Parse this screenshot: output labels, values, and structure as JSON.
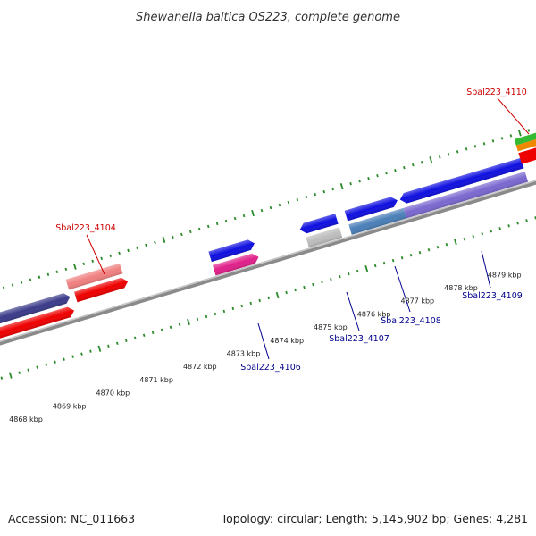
{
  "title": "Shewanella baltica OS223, complete genome",
  "footer": {
    "accession": "Accession: NC_011663",
    "summary": "Topology: circular; Length: 5,145,902 bp; Genes: 4,281"
  },
  "colors": {
    "backbone": "#8a8a8a",
    "tick": "#2a8a2a",
    "label_top": "#cc0000",
    "label_bottom": "#00008b"
  },
  "scale": {
    "unit": "kbp",
    "labels": [
      "4868 kbp",
      "4869 kbp",
      "4870 kbp",
      "4871 kbp",
      "4872 kbp",
      "4873 kbp",
      "4874 kbp",
      "4875 kbp",
      "4876 kbp",
      "4877 kbp",
      "4878 kbp",
      "4879 kbp"
    ]
  },
  "gene_labels_top": [
    "Sbal223_4104",
    "Sbal223_4110"
  ],
  "gene_labels_bottom": [
    "Sbal223_4106",
    "Sbal223_4107",
    "Sbal223_4108",
    "Sbal223_4109"
  ],
  "features": [
    {
      "name": "dark-blue-feature",
      "color": "#3b3b8a",
      "strand": "reverse",
      "lane": 1
    },
    {
      "name": "red-feature-left",
      "color": "#ee0000",
      "strand": "forward",
      "lane": 2
    },
    {
      "name": "pink-feature",
      "color": "#f08080",
      "strand": "none",
      "lane": 1
    },
    {
      "name": "red-feature-mid",
      "color": "#ee0000",
      "strand": "forward",
      "lane": 2
    },
    {
      "name": "blue-feature-4106",
      "color": "#1010e0",
      "strand": "forward",
      "lane": 1
    },
    {
      "name": "magenta-feature",
      "color": "#e0208a",
      "strand": "forward",
      "lane": 2
    },
    {
      "name": "blue-feature-4107",
      "color": "#1010e0",
      "strand": "reverse",
      "lane": 1
    },
    {
      "name": "grey-feature",
      "color": "#bdbdbd",
      "strand": "none",
      "lane": 2
    },
    {
      "name": "blue-feature-4108",
      "color": "#1010e0",
      "strand": "forward",
      "lane": 1
    },
    {
      "name": "steel-blue-feature",
      "color": "#4a7fb8",
      "strand": "none",
      "lane": 2
    },
    {
      "name": "blue-feature-4109",
      "color": "#1010e0",
      "strand": "reverse",
      "lane": 1
    },
    {
      "name": "purple-feature",
      "color": "#7b68d0",
      "strand": "none",
      "lane": 2
    },
    {
      "name": "green-feature",
      "color": "#33bb33",
      "strand": "none",
      "lane": 1
    },
    {
      "name": "orange-feature",
      "color": "#ee8800",
      "strand": "none",
      "lane": 1
    },
    {
      "name": "red-feature-right",
      "color": "#ee0000",
      "strand": "none",
      "lane": 2
    }
  ]
}
